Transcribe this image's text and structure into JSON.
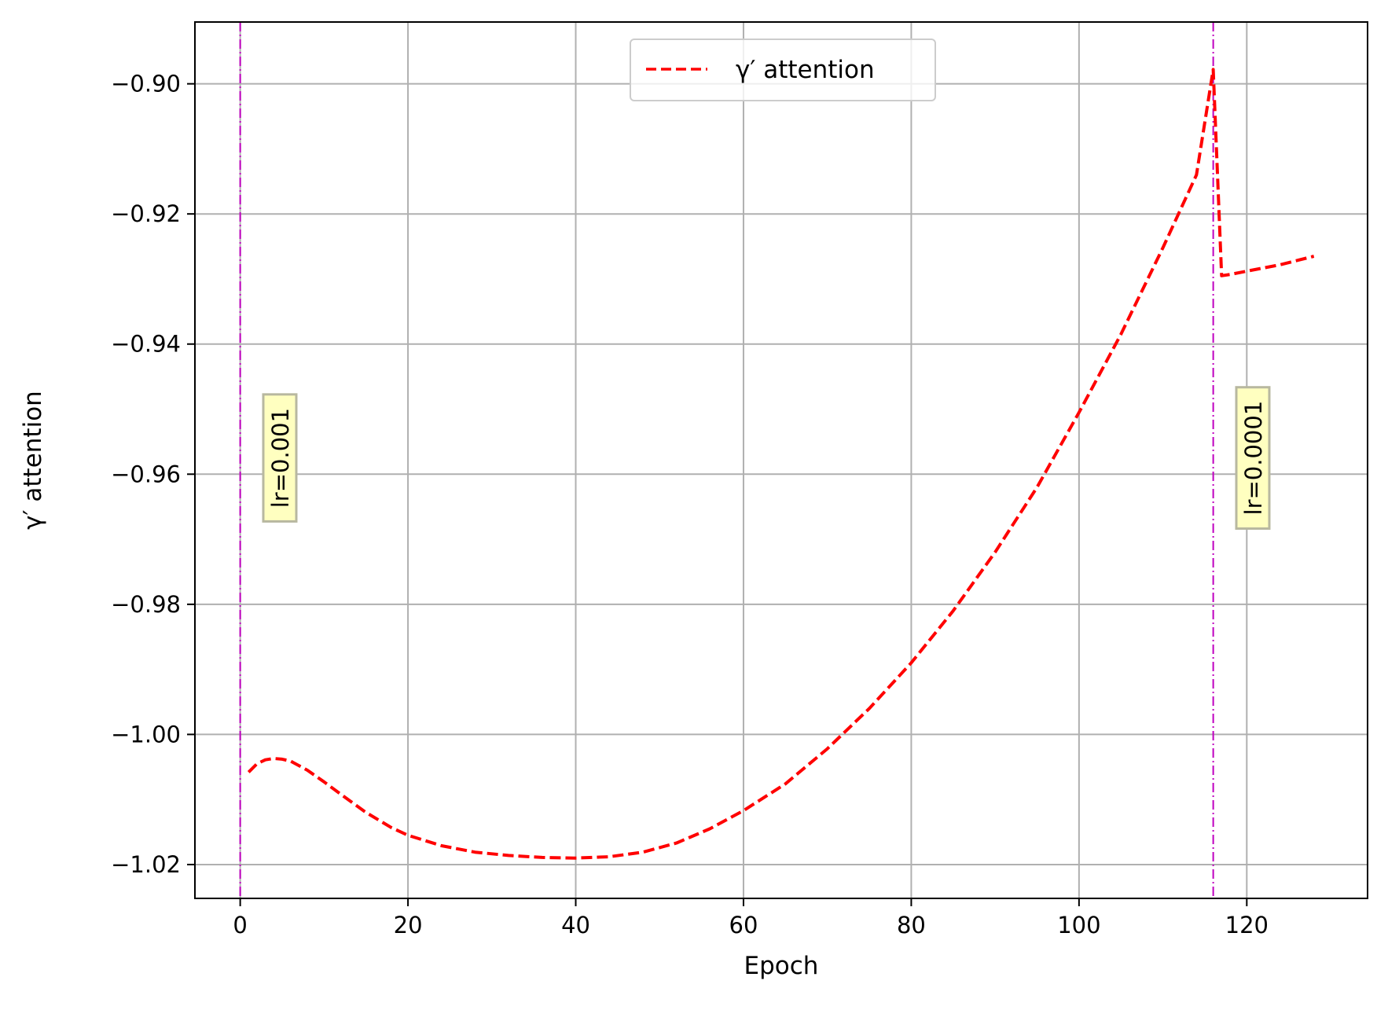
{
  "chart_data": {
    "type": "line",
    "title": "",
    "xlabel": "Epoch",
    "ylabel": "γ′ attention",
    "xlim": [
      -5.4,
      134.4
    ],
    "ylim": [
      -1.0252,
      -0.8905
    ],
    "xticks": [
      0,
      20,
      40,
      60,
      80,
      100,
      120
    ],
    "xtick_labels": [
      "0",
      "20",
      "40",
      "60",
      "80",
      "100",
      "120"
    ],
    "yticks": [
      -0.9,
      -0.92,
      -0.94,
      -0.96,
      -0.98,
      -1.0,
      -1.02
    ],
    "ytick_labels": [
      "−0.90",
      "−0.92",
      "−0.94",
      "−0.96",
      "−0.98",
      "−1.00",
      "−1.02"
    ],
    "grid": true,
    "legend_position": "top-center",
    "series": [
      {
        "name": "γ′ attention",
        "color": "#ff0000",
        "linestyle": "dashed",
        "x": [
          1,
          2,
          3,
          4,
          5,
          6,
          8,
          10,
          12,
          15,
          18,
          20,
          24,
          28,
          32,
          36,
          40,
          44,
          48,
          52,
          56,
          60,
          65,
          70,
          75,
          80,
          85,
          90,
          95,
          100,
          105,
          110,
          114,
          116,
          117,
          118,
          120,
          124,
          128
        ],
        "y": [
          -1.0058,
          -1.0045,
          -1.0039,
          -1.0037,
          -1.0038,
          -1.0041,
          -1.0055,
          -1.0073,
          -1.0092,
          -1.012,
          -1.0143,
          -1.0155,
          -1.0171,
          -1.0181,
          -1.0186,
          -1.0189,
          -1.019,
          -1.0188,
          -1.0181,
          -1.0167,
          -1.0145,
          -1.0117,
          -1.0076,
          -1.0022,
          -0.996,
          -0.989,
          -0.981,
          -0.972,
          -0.962,
          -0.9505,
          -0.9385,
          -0.9252,
          -0.914,
          -0.8978,
          -0.9295,
          -0.9293,
          -0.9288,
          -0.9278,
          -0.9265
        ]
      }
    ],
    "vlines": [
      {
        "x": 0,
        "color": "#bf00bf",
        "linestyle": "dashdot"
      },
      {
        "x": 116,
        "color": "#bf00bf",
        "linestyle": "dashdot"
      }
    ],
    "annotations": [
      {
        "text": "lr=0.001",
        "x": 5,
        "y": -0.9575,
        "rotation": 90,
        "background": "#ffffc0"
      },
      {
        "text": "lr=0.0001",
        "x": 121,
        "y": -0.9575,
        "rotation": 90,
        "background": "#ffffc0"
      }
    ]
  }
}
